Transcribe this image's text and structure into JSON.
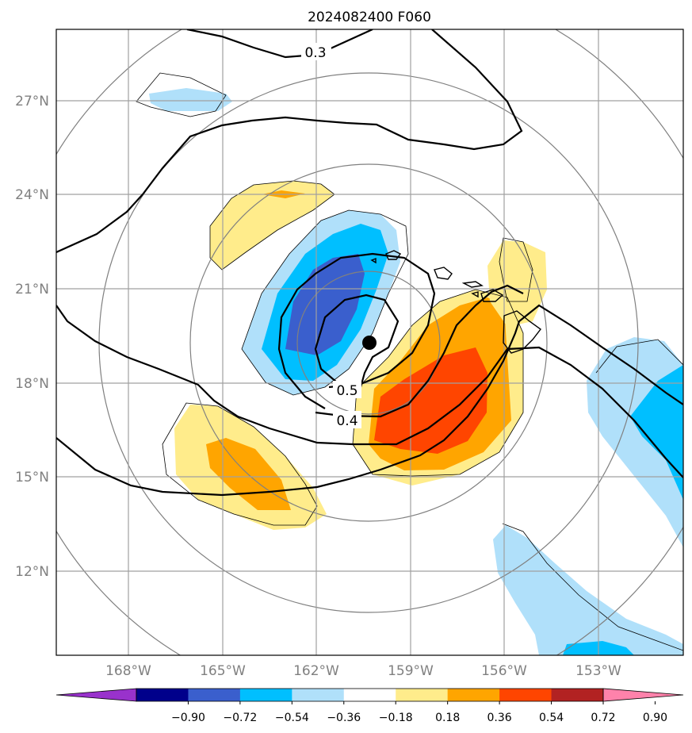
{
  "title": "2024082400 F060",
  "map": {
    "lat_labels": [
      "27°N",
      "24°N",
      "21°N",
      "18°N",
      "15°N",
      "12°N"
    ],
    "lon_labels": [
      "168°W",
      "165°W",
      "162°W",
      "159°W",
      "156°W",
      "153°W"
    ],
    "contour_labels": [
      "0.3",
      "0.5",
      "0.4"
    ],
    "storm_center": {
      "lon": "160.3°W",
      "lat": "19.3°N"
    }
  },
  "colorbar": {
    "labels": [
      "−0.90",
      "−0.72",
      "−0.54",
      "−0.36",
      "−0.18",
      "0.18",
      "0.36",
      "0.54",
      "0.72",
      "0.90"
    ],
    "colors": [
      "#9932cc",
      "#00008b",
      "#3a5fcd",
      "#00bfff",
      "#b0e0fa",
      "#ffffff",
      "#ffec8b",
      "#ffa500",
      "#ff4500",
      "#b22222",
      "#ff82ab"
    ]
  }
}
